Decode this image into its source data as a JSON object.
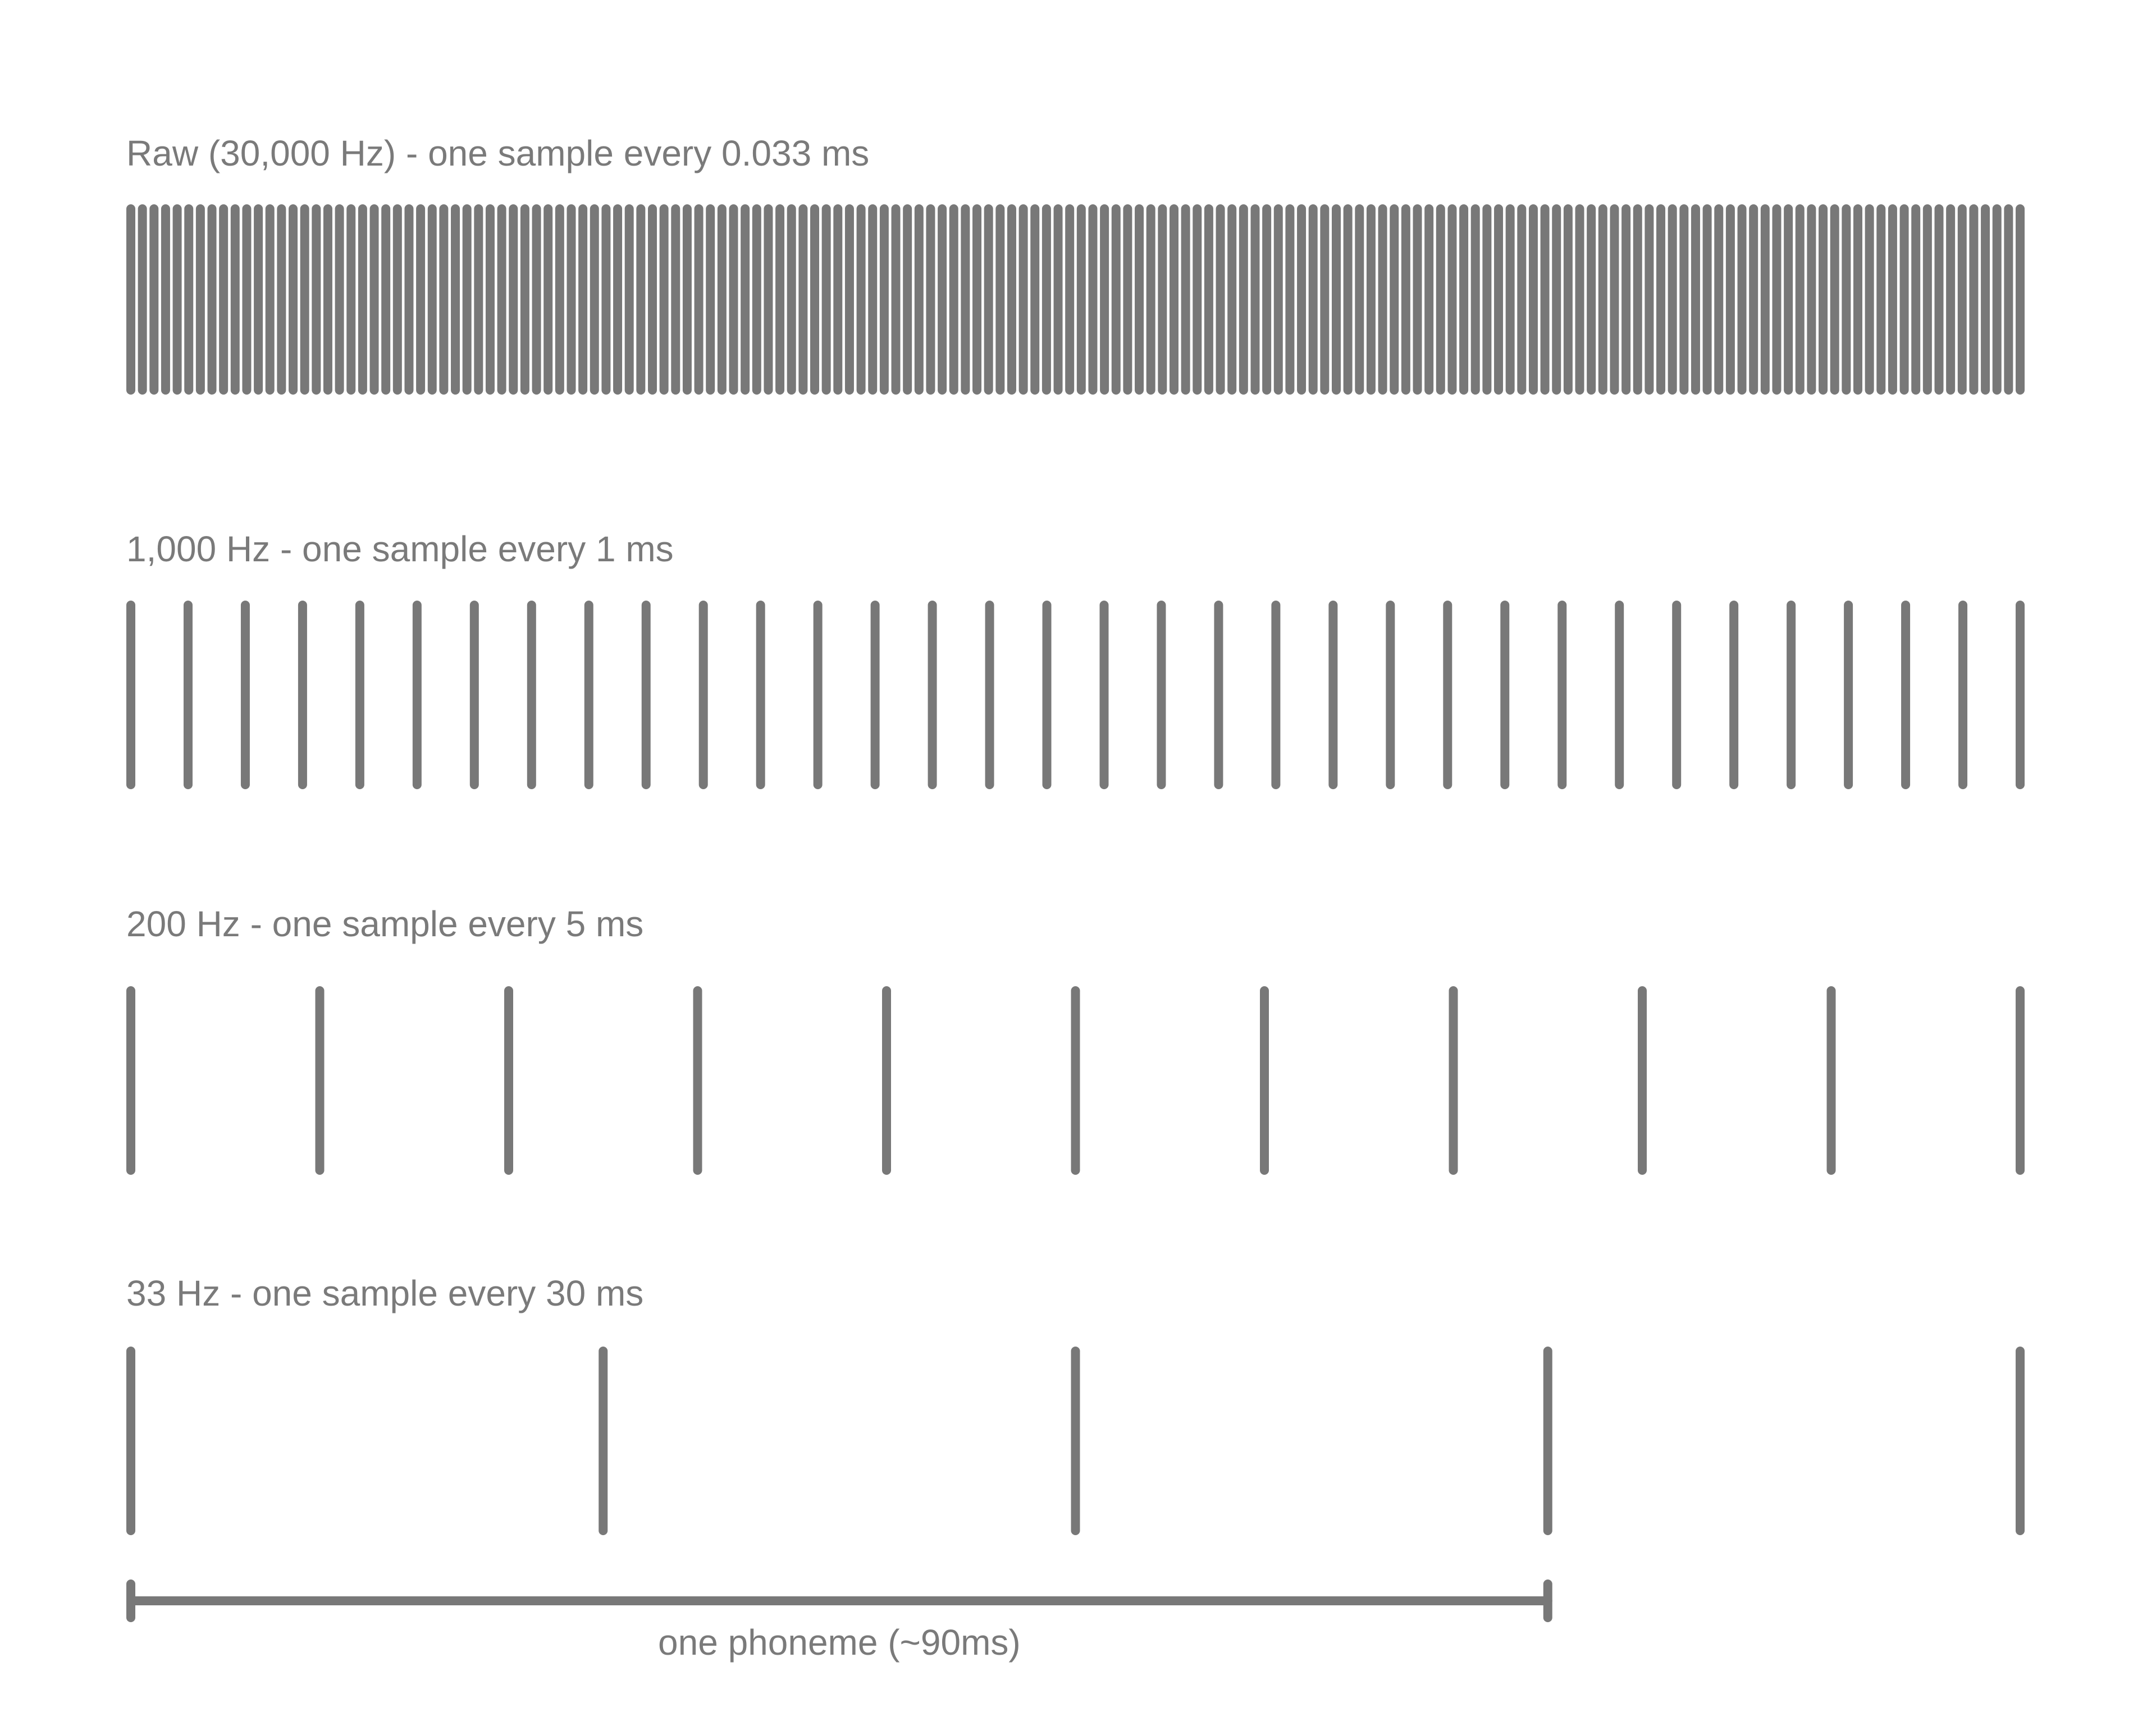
{
  "colors": {
    "background": "#ffffff",
    "ticks": "#787878",
    "text": "#7a7a7a"
  },
  "rows": [
    {
      "id": "raw",
      "label": "Raw (30,000 Hz) - one sample every 0.033 ms",
      "sample_count": 164
    },
    {
      "id": "hz1000",
      "label": "1,000 Hz - one sample every 1 ms",
      "sample_count": 34
    },
    {
      "id": "hz200",
      "label": "200 Hz - one sample every 5 ms",
      "sample_count": 11
    },
    {
      "id": "hz33",
      "label": "33 Hz - one sample every 30 ms",
      "sample_count": 5
    }
  ],
  "phoneme": {
    "label": "one phoneme (~90ms)",
    "span_samples_of_last_row": 3
  }
}
